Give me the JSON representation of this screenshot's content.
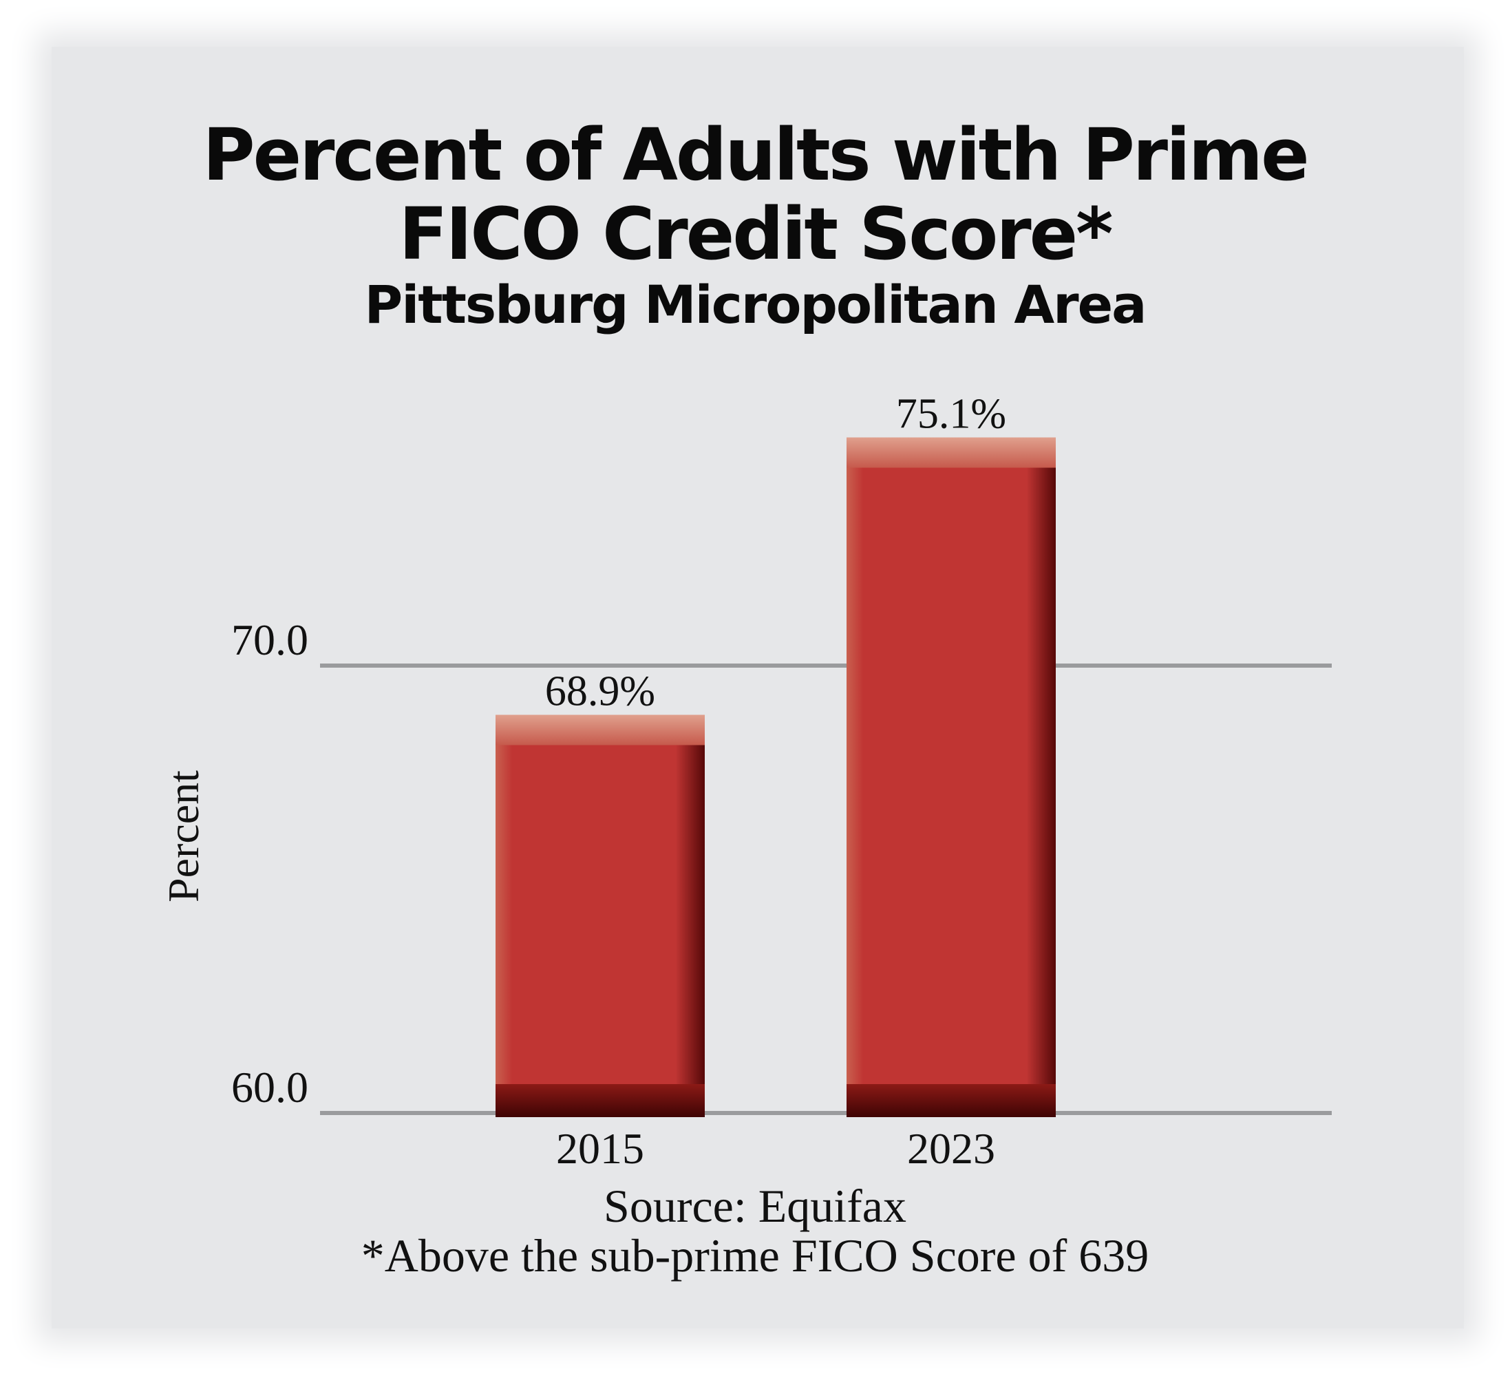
{
  "chart_data": {
    "type": "bar",
    "title": "Percent of Adults with Prime FICO Credit Score*",
    "title_lines": [
      "Percent of Adults with Prime",
      "FICO Credit Score*"
    ],
    "subtitle": "Pittsburg Micropolitan Area",
    "categories": [
      "2015",
      "2023"
    ],
    "values": [
      68.9,
      75.1
    ],
    "value_labels": [
      "68.9%",
      "75.1%"
    ],
    "xlabel": "",
    "ylabel": "Percent",
    "ylim": [
      60.0,
      70.0
    ],
    "y_ticks": [
      60.0,
      70.0
    ],
    "y_tick_labels": [
      "60.0",
      "70.0"
    ],
    "grid": true,
    "legend": "none",
    "source": "Source: Equifax",
    "footnote": "*Above the sub-prime FICO Score of 639",
    "colors": {
      "bar": "#c03533",
      "bar_highlight": "#d98f7c",
      "bar_shadow": "#4a0606",
      "gridline": "#9a9b9d",
      "background": "#e6e7e9"
    }
  }
}
